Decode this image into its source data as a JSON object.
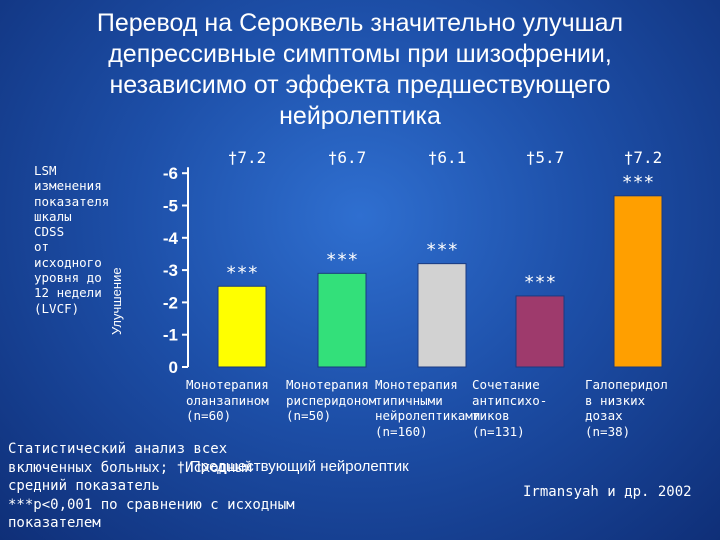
{
  "chart_data": {
    "type": "bar",
    "title_lines": [
      "Перевод на Сероквель значительно улучшал",
      "депрессивные симптомы при шизофрении,",
      "независимо от эффекта предшествующего",
      "нейролептика"
    ],
    "ylabel_lines": [
      "LSM",
      "изменения",
      "показателя",
      "шкалы",
      "CDSS",
      "от",
      "исходного",
      "уровня до",
      "12 недели",
      "(LVCF)"
    ],
    "ylabel_arrow": "Улучшение",
    "yticks": [
      "-6",
      "-5",
      "-4",
      "-3",
      "-2",
      "-1",
      "0"
    ],
    "ylim": [
      0,
      -6
    ],
    "categories": [
      {
        "lines": [
          "Монотерапия",
          "оланзапином",
          "(n=60)"
        ],
        "value": -2.5,
        "baseline_label": "†7.2",
        "significance": "***",
        "color": "#ffff00"
      },
      {
        "lines": [
          "Монотерапия",
          "рисперидоном",
          "(n=50)"
        ],
        "value": -2.9,
        "baseline_label": "†6.7",
        "significance": "***",
        "color": "#33e07a"
      },
      {
        "lines": [
          "Монотерапия",
          "типичными",
          "нейролептиками",
          "(n=160)"
        ],
        "value": -3.2,
        "baseline_label": "†6.1",
        "significance": "***",
        "color": "#d2d2d2"
      },
      {
        "lines": [
          "Сочетание",
          "антипсихо-",
          "тиков",
          "(n=131)"
        ],
        "value": -2.2,
        "baseline_label": "†5.7",
        "significance": "***",
        "color": "#9e3a6c"
      },
      {
        "lines": [
          "Галоперидол",
          "в низких",
          "дозах",
          "(n=38)"
        ],
        "value": -5.3,
        "baseline_label": "†7.2",
        "significance": "***",
        "color": "#ff9f00"
      }
    ],
    "footnote_lines": [
      "Статистический анализ всех",
      "включенных больных; †Исходный",
      "средний показатель",
      "***p<0,001 по сравнению с исходным",
      "показателем"
    ],
    "legend_previous": "Предшествующий нейролептик",
    "citation": "Irmansyah и др. 2002"
  }
}
